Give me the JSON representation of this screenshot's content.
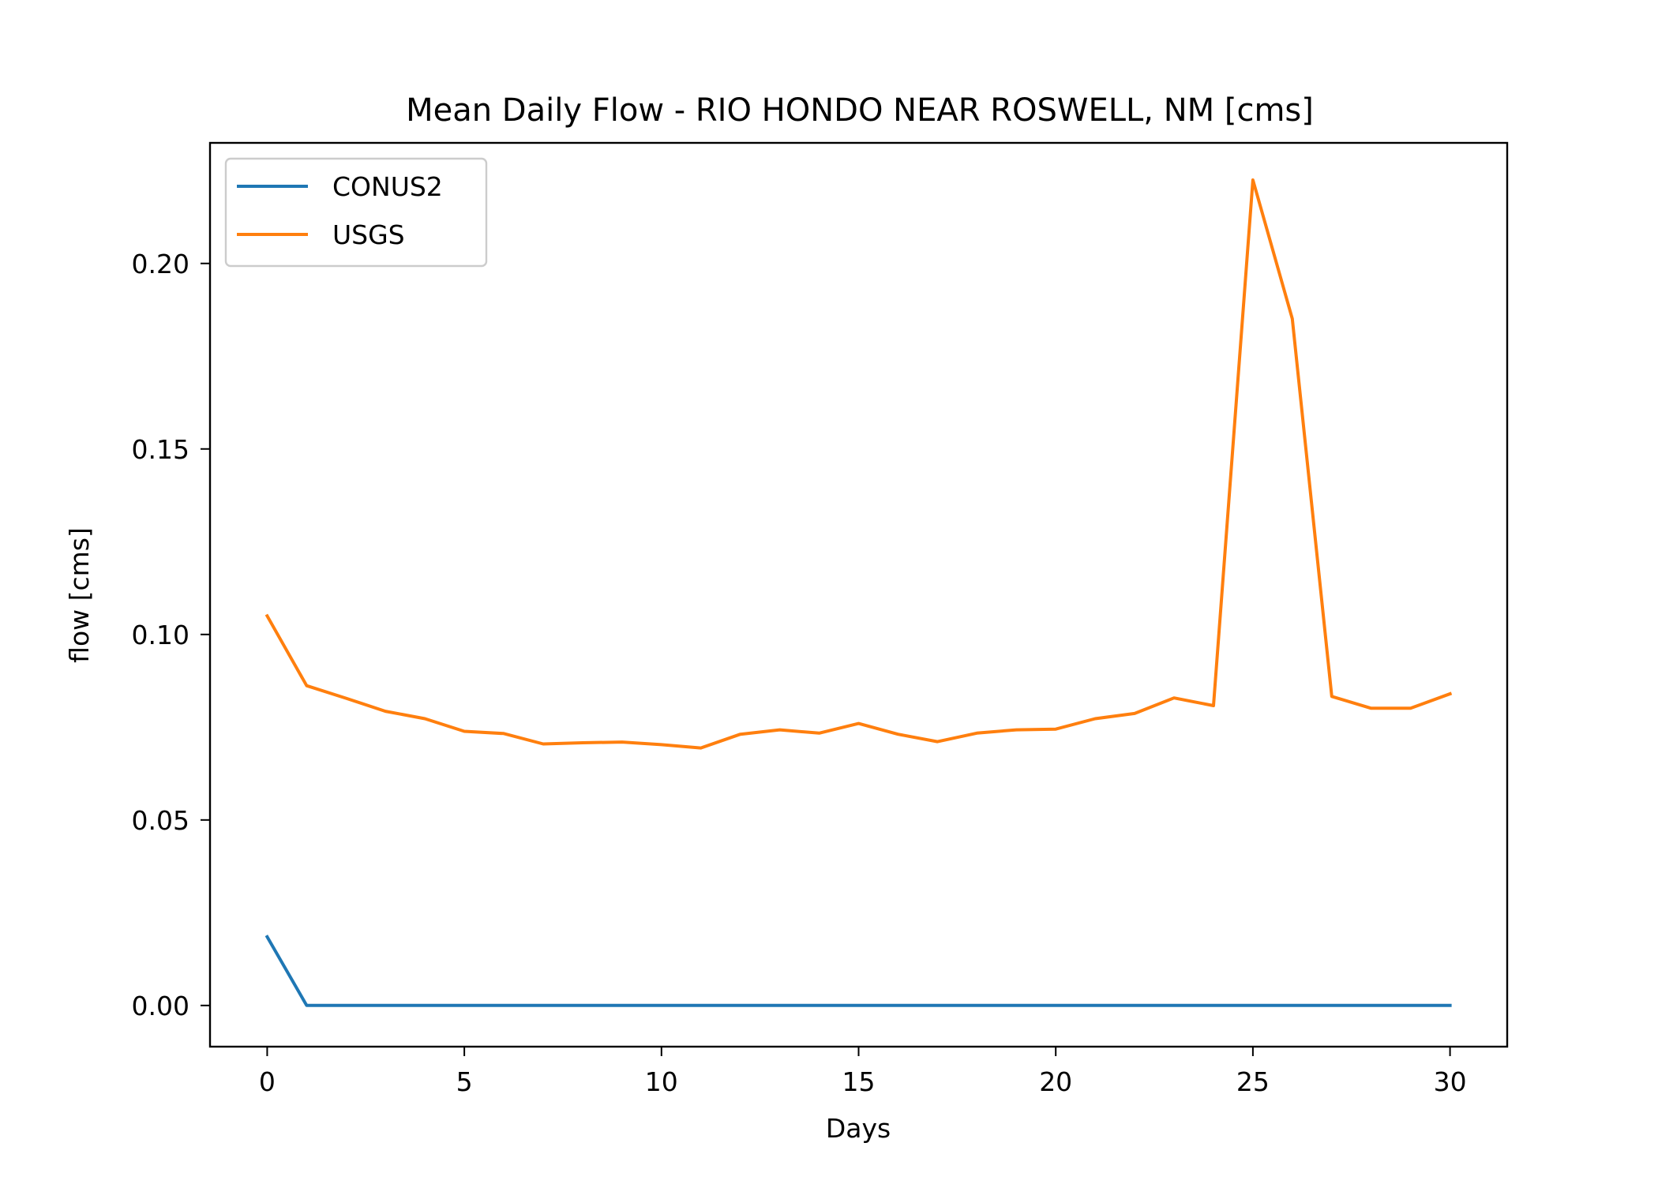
{
  "chart_data": {
    "type": "line",
    "title": "Mean Daily Flow - RIO HONDO NEAR ROSWELL, NM [cms]",
    "xlabel": "Days",
    "ylabel": "flow [cms]",
    "xlim": [
      -1.45,
      31.45
    ],
    "ylim": [
      -0.0111,
      0.2325
    ],
    "xticks": [
      0,
      5,
      10,
      15,
      20,
      25,
      30
    ],
    "yticks": [
      0.0,
      0.05,
      0.1,
      0.15,
      0.2
    ],
    "xtick_labels": [
      "0",
      "5",
      "10",
      "15",
      "20",
      "25",
      "30"
    ],
    "ytick_labels": [
      "0.00",
      "0.05",
      "0.10",
      "0.15",
      "0.20"
    ],
    "grid": false,
    "legend_position": "top-left",
    "x": [
      0,
      1,
      2,
      3,
      4,
      5,
      6,
      7,
      8,
      9,
      10,
      11,
      12,
      13,
      14,
      15,
      16,
      17,
      18,
      19,
      20,
      21,
      22,
      23,
      24,
      25,
      26,
      27,
      28,
      29,
      30
    ],
    "series": [
      {
        "name": "CONUS2",
        "color": "#1f77b4",
        "values": [
          0.0185,
          0,
          0,
          0,
          0,
          0,
          0,
          0,
          0,
          0,
          0,
          0,
          0,
          0,
          0,
          0,
          0,
          0,
          0,
          0,
          0,
          0,
          0,
          0,
          0,
          0,
          0,
          0,
          0,
          0,
          0
        ]
      },
      {
        "name": "USGS",
        "color": "#ff7f0e",
        "values": [
          0.105,
          0.0862,
          0.0828,
          0.0793,
          0.0773,
          0.0739,
          0.0733,
          0.0705,
          0.0708,
          0.071,
          0.0703,
          0.0694,
          0.0731,
          0.0743,
          0.0734,
          0.076,
          0.0731,
          0.0711,
          0.0734,
          0.0743,
          0.0745,
          0.0773,
          0.0787,
          0.0829,
          0.0808,
          0.2225,
          0.1851,
          0.0833,
          0.0801,
          0.0801,
          0.084
        ]
      }
    ]
  }
}
